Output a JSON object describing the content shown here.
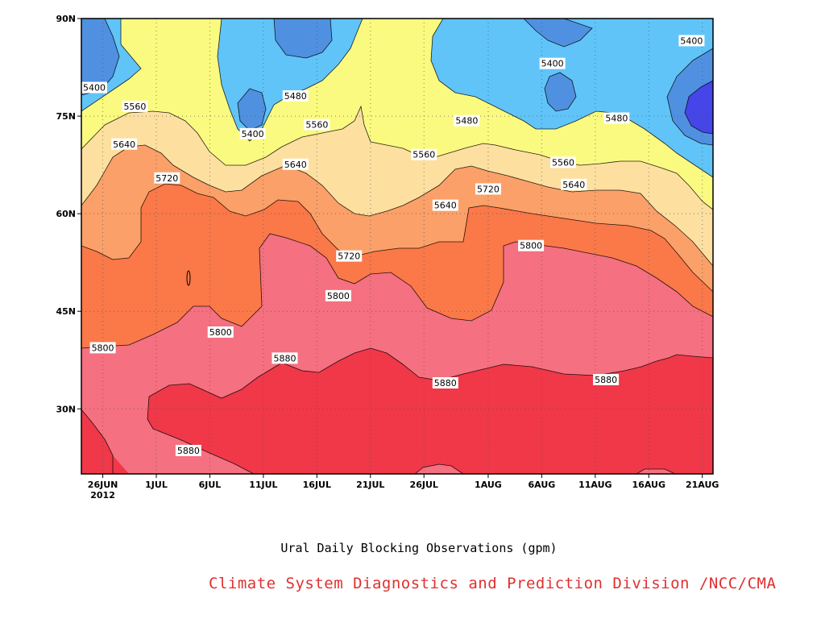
{
  "chart_data": {
    "type": "heatmap",
    "subtype": "filled-contour (time vs latitude)",
    "title": "Ural Daily Blocking Observations (gpm)",
    "credit": "Climate System Diagnostics and Prediction Division /NCC/CMA",
    "credit_color": "#e03030",
    "x_axis": {
      "type": "time",
      "range": [
        "2012-06-24",
        "2012-08-22"
      ],
      "ticks": [
        {
          "date": "2012-06-26",
          "label": "26JUN",
          "sublabel": "2012"
        },
        {
          "date": "2012-07-01",
          "label": "1JUL"
        },
        {
          "date": "2012-07-06",
          "label": "6JUL"
        },
        {
          "date": "2012-07-11",
          "label": "11JUL"
        },
        {
          "date": "2012-07-16",
          "label": "16JUL"
        },
        {
          "date": "2012-07-21",
          "label": "21JUL"
        },
        {
          "date": "2012-07-26",
          "label": "26JUL"
        },
        {
          "date": "2012-08-01",
          "label": "1AUG"
        },
        {
          "date": "2012-08-06",
          "label": "6AUG"
        },
        {
          "date": "2012-08-11",
          "label": "11AUG"
        },
        {
          "date": "2012-08-16",
          "label": "16AUG"
        },
        {
          "date": "2012-08-21",
          "label": "21AUG"
        }
      ]
    },
    "y_axis": {
      "unit": "degrees N",
      "range": [
        20,
        90
      ],
      "ticks": [
        {
          "value": 30,
          "label": "30N"
        },
        {
          "value": 45,
          "label": "45N"
        },
        {
          "value": 60,
          "label": "60N"
        },
        {
          "value": 75,
          "label": "75N"
        },
        {
          "value": 90,
          "label": "90N"
        }
      ]
    },
    "grid": true,
    "contour_levels": [
      5320,
      5400,
      5480,
      5560,
      5640,
      5720,
      5800,
      5880
    ],
    "fill_colors": {
      "below_5320": "#4545e8",
      "5320_5400": "#5090e0",
      "5400_5480": "#60c4f8",
      "5480_5560": "#fafa80",
      "5560_5640": "#fde0a0",
      "5640_5720": "#fba068",
      "5720_5800": "#fb7848",
      "5800_5880": "#f57080",
      "above_5880": "#f03848"
    },
    "contour_labels": [
      {
        "text": "5400",
        "date": "2012-06-24",
        "lat": 79.4
      },
      {
        "text": "5560",
        "date": "2012-06-29",
        "lat": 76.5
      },
      {
        "text": "5640",
        "date": "2012-06-28",
        "lat": 70.7
      },
      {
        "text": "5720",
        "date": "2012-07-02",
        "lat": 65.5
      },
      {
        "text": "5800",
        "date": "2012-06-26",
        "lat": 39.4
      },
      {
        "text": "5880",
        "date": "2012-07-04",
        "lat": 23.6
      },
      {
        "text": "5800",
        "date": "2012-07-07",
        "lat": 41.8
      },
      {
        "text": "5400",
        "date": "2012-07-10",
        "lat": 72.3
      },
      {
        "text": "5880",
        "date": "2012-07-13",
        "lat": 37.8
      },
      {
        "text": "5480",
        "date": "2012-07-14",
        "lat": 78.1
      },
      {
        "text": "5640",
        "date": "2012-07-14",
        "lat": 67.6
      },
      {
        "text": "5560",
        "date": "2012-07-16",
        "lat": 73.7
      },
      {
        "text": "5720",
        "date": "2012-07-19",
        "lat": 53.5
      },
      {
        "text": "5800",
        "date": "2012-07-18",
        "lat": 47.4
      },
      {
        "text": "5560",
        "date": "2012-07-26",
        "lat": 69.1
      },
      {
        "text": "5640",
        "date": "2012-07-28",
        "lat": 61.3
      },
      {
        "text": "5880",
        "date": "2012-07-28",
        "lat": 34.0
      },
      {
        "text": "5480",
        "date": "2012-07-30",
        "lat": 74.3
      },
      {
        "text": "5720",
        "date": "2012-08-01",
        "lat": 63.8
      },
      {
        "text": "5800",
        "date": "2012-08-05",
        "lat": 55.1
      },
      {
        "text": "5400",
        "date": "2012-08-07",
        "lat": 83.1
      },
      {
        "text": "5560",
        "date": "2012-08-08",
        "lat": 67.9
      },
      {
        "text": "5640",
        "date": "2012-08-09",
        "lat": 64.5
      },
      {
        "text": "5480",
        "date": "2012-08-13",
        "lat": 74.7
      },
      {
        "text": "5880",
        "date": "2012-08-12",
        "lat": 34.5
      },
      {
        "text": "5400",
        "date": "2012-08-20",
        "lat": 86.6
      }
    ]
  }
}
